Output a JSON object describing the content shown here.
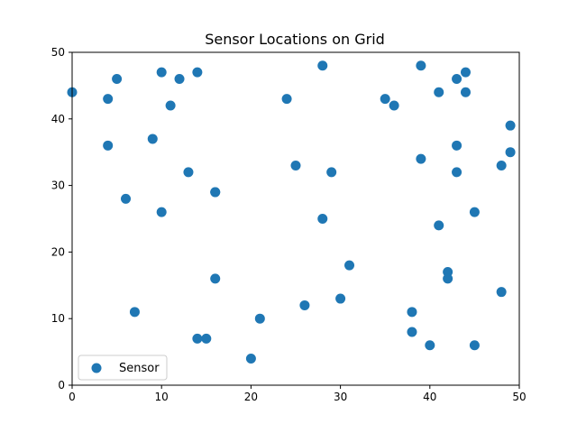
{
  "chart_data": {
    "type": "scatter",
    "title": "Sensor Locations on Grid",
    "xlabel": "",
    "ylabel": "",
    "xlim": [
      0,
      50
    ],
    "ylim": [
      0,
      50
    ],
    "xticks": [
      0,
      10,
      20,
      30,
      40,
      50
    ],
    "yticks": [
      0,
      10,
      20,
      30,
      40,
      50
    ],
    "grid": false,
    "legend_position": "lower-left",
    "series": [
      {
        "name": "Sensor",
        "color": "#1f77b4",
        "points": [
          [
            0,
            44
          ],
          [
            4,
            43
          ],
          [
            4,
            36
          ],
          [
            5,
            46
          ],
          [
            6,
            28
          ],
          [
            7,
            11
          ],
          [
            9,
            37
          ],
          [
            10,
            47
          ],
          [
            10,
            26
          ],
          [
            11,
            42
          ],
          [
            12,
            46
          ],
          [
            13,
            32
          ],
          [
            14,
            47
          ],
          [
            14,
            7
          ],
          [
            15,
            7
          ],
          [
            16,
            29
          ],
          [
            16,
            29
          ],
          [
            16,
            16
          ],
          [
            20,
            4
          ],
          [
            21,
            10
          ],
          [
            24,
            43
          ],
          [
            25,
            33
          ],
          [
            26,
            12
          ],
          [
            28,
            48
          ],
          [
            28,
            25
          ],
          [
            29,
            32
          ],
          [
            30,
            13
          ],
          [
            31,
            18
          ],
          [
            35,
            43
          ],
          [
            36,
            42
          ],
          [
            38,
            11
          ],
          [
            38,
            8
          ],
          [
            39,
            48
          ],
          [
            39,
            34
          ],
          [
            40,
            6
          ],
          [
            41,
            44
          ],
          [
            41,
            24
          ],
          [
            42,
            17
          ],
          [
            42,
            16
          ],
          [
            43,
            46
          ],
          [
            43,
            36
          ],
          [
            43,
            32
          ],
          [
            44,
            47
          ],
          [
            44,
            44
          ],
          [
            45,
            26
          ],
          [
            45,
            6
          ],
          [
            48,
            33
          ],
          [
            48,
            14
          ],
          [
            49,
            39
          ],
          [
            49,
            35
          ]
        ]
      }
    ]
  }
}
